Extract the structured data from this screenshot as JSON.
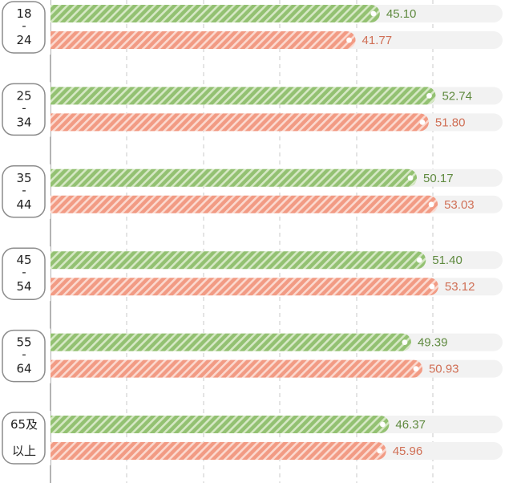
{
  "colors": {
    "green": "#93c172",
    "green_light": "#d6e8c5",
    "green_text": "#5f8a3f",
    "orange": "#f29b84",
    "orange_light": "#fbd9cf",
    "orange_text": "#d06f55",
    "track": "#f2f2f2",
    "grid": "#c9c9c9",
    "axis": "#8a8a8a",
    "label_box": "#8c8c8c"
  },
  "chart_data": {
    "type": "bar",
    "orientation": "horizontal",
    "categories": [
      "18\n-\n24",
      "25\n-\n34",
      "35\n-\n44",
      "45\n-\n54",
      "55\n-\n64",
      "65及\n以上"
    ],
    "series": [
      {
        "color": "green",
        "values": [
          45.1,
          52.74,
          50.17,
          51.4,
          49.39,
          46.37
        ]
      },
      {
        "color": "orange",
        "values": [
          41.77,
          51.8,
          53.03,
          53.12,
          50.93,
          45.96
        ]
      }
    ],
    "value_labels": [
      [
        "45.10",
        "52.74",
        "50.17",
        "51.40",
        "49.39",
        "46.37"
      ],
      [
        "41.77",
        "51.80",
        "53.03",
        "53.12",
        "50.93",
        "45.96"
      ]
    ],
    "xlim": [
      0,
      60
    ],
    "grid": true,
    "pattern": "diagonal-stripes"
  }
}
